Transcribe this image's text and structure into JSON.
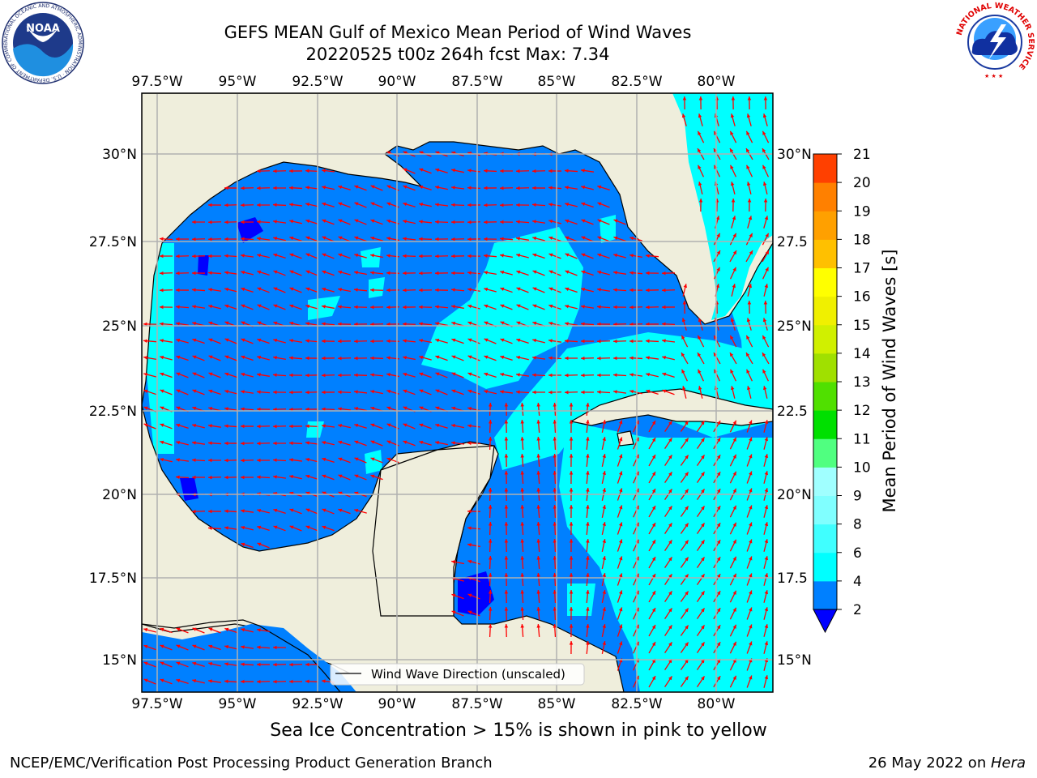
{
  "title": {
    "line1": "GEFS MEAN Gulf of Mexico Mean Period of Wind Waves",
    "line2": "20220525 t00z 264h fcst   Max: 7.34"
  },
  "map": {
    "lon_ticks": [
      "97.5°W",
      "95°W",
      "92.5°W",
      "90°W",
      "87.5°W",
      "85°W",
      "82.5°W",
      "80°W"
    ],
    "lat_ticks_left": [
      "30°N",
      "27.5°N",
      "25°N",
      "22.5°N",
      "20°N",
      "17.5°N",
      "15°N"
    ],
    "lat_ticks_right": [
      "30°N",
      "27.5",
      "25°N",
      "22.5",
      "20°N",
      "17.5",
      "15°N"
    ],
    "legend_label": "Wind Wave Direction (unscaled)",
    "colors": {
      "land": "#efeedc",
      "water_low": "#0080ff",
      "water_mid": "#00ffff",
      "water_deep": "#0000ff",
      "arrow": "#ff0000",
      "grid": "#b0b0b0"
    }
  },
  "colorbar": {
    "label": "Mean Period of Wind Waves [s]",
    "ticks": [
      "2",
      "4",
      "6",
      "8",
      "9",
      "10",
      "11",
      "12",
      "13",
      "14",
      "15",
      "16",
      "17",
      "18",
      "19",
      "20",
      "21"
    ],
    "segment_colors": [
      "#0080ff",
      "#00ffff",
      "#40ffff",
      "#80ffff",
      "#a0ffff",
      "#50ff80",
      "#00e000",
      "#50e000",
      "#a0e000",
      "#d0f000",
      "#f0f000",
      "#ffff00",
      "#ffc000",
      "#ffa000",
      "#ff8000",
      "#ff4000",
      "#ff0000"
    ],
    "underflow_color": "#0000ff"
  },
  "bottom_note": "Sea Ice Concentration > 15% is shown in pink to yellow",
  "footer": {
    "left": "NCEP/EMC/Verification Post Processing Product Generation Branch",
    "date": "26 May 2022 on ",
    "machine": "Hera"
  },
  "logos": {
    "noaa": "NOAA",
    "noaa_ring": "NATIONAL OCEANIC AND ATMOSPHERIC ADMINISTRATION · U.S. DEPARTMENT OF COMMERCE",
    "nws_ring": "NATIONAL WEATHER SERVICE"
  }
}
